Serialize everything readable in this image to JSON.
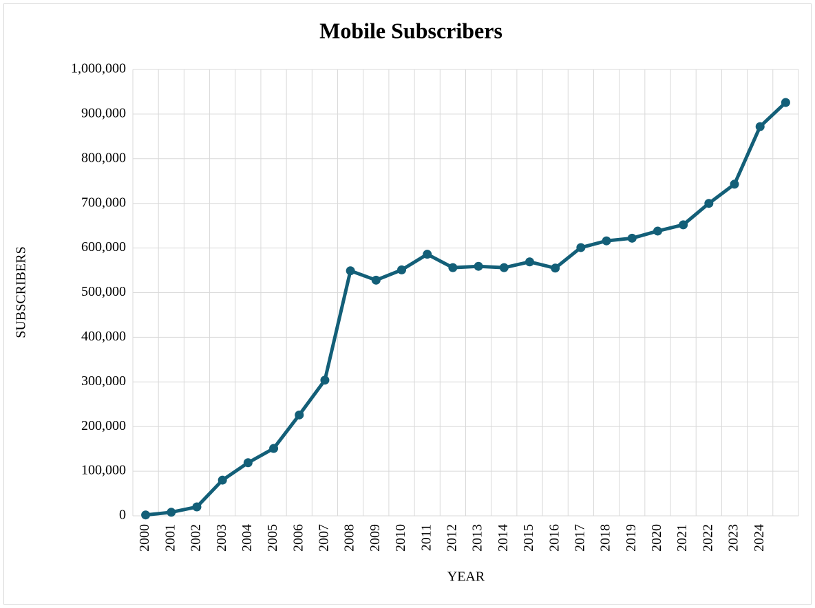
{
  "chart_data": {
    "type": "line",
    "title": "Mobile Subscribers",
    "x_label": "YEAR",
    "y_label": "SUBSCRIBERS",
    "categories": [
      "2000",
      "2001",
      "2002",
      "2003",
      "2004",
      "2005",
      "2006",
      "2007",
      "2008",
      "2009",
      "2010",
      "2011",
      "2012",
      "2013",
      "2014",
      "2015",
      "2016",
      "2017",
      "2018",
      "2019",
      "2020",
      "2021",
      "2022",
      "2023",
      "2024",
      null
    ],
    "values": [
      2000,
      8000,
      20000,
      80000,
      119000,
      151000,
      226000,
      304000,
      549000,
      528000,
      551000,
      586000,
      556000,
      559000,
      556000,
      569000,
      555000,
      601000,
      616000,
      622000,
      638000,
      652000,
      700000,
      743000,
      872000,
      926000
    ],
    "color": "#135f78",
    "ylim": [
      0,
      1000000
    ],
    "yticks": [
      0,
      {
        "value": 100000,
        "label": "100,000"
      },
      {
        "value": 200000,
        "label": "200,000"
      },
      {
        "value": 300000,
        "label": "300,000"
      },
      {
        "value": 400000,
        "label": "400,000"
      },
      {
        "value": 500000,
        "label": "500,000"
      },
      {
        "value": 600000,
        "label": "600,000"
      },
      {
        "value": 700000,
        "label": "700,000"
      },
      {
        "value": 800000,
        "label": "800,000"
      },
      {
        "value": 900000,
        "label": "900,000"
      },
      {
        "value": 1000000,
        "label": "1,000,000"
      }
    ],
    "grid": true
  }
}
